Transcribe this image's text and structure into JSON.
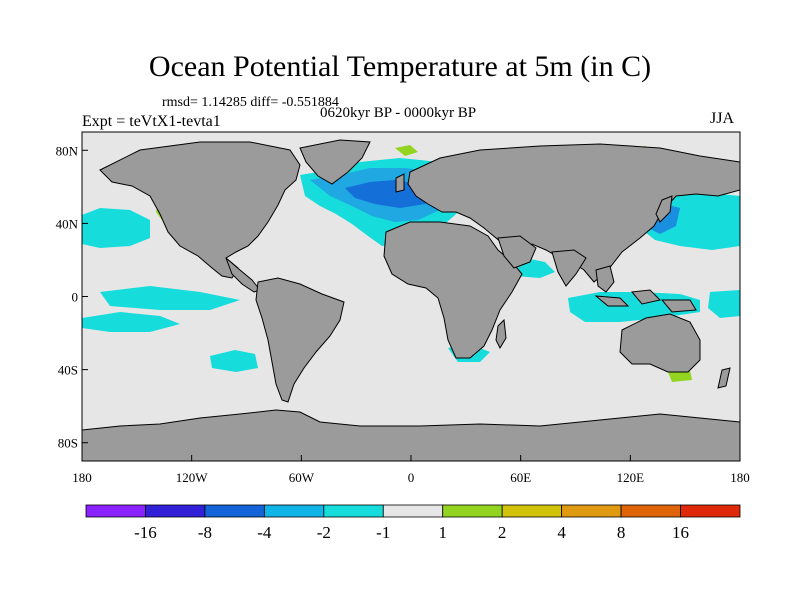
{
  "title": "Ocean Potential Temperature at 5m (in C)",
  "stats_line": "rmsd= 1.14285  diff= -0.551884",
  "period": "0620kyr BP - 0000kyr BP",
  "experiment": "Expt = teVtX1-tevta1",
  "season": "JJA",
  "map": {
    "land_color": "#9b9b9b",
    "ocean_neutral_color": "#e6e6e6",
    "coastline_color": "#000000",
    "lon_range": [
      -180,
      180
    ],
    "lat_range": [
      -90,
      90
    ],
    "x_ticks": [
      {
        "value": -180,
        "label": "180"
      },
      {
        "value": -120,
        "label": "120W"
      },
      {
        "value": -60,
        "label": "60W"
      },
      {
        "value": 0,
        "label": "0"
      },
      {
        "value": 60,
        "label": "60E"
      },
      {
        "value": 120,
        "label": "120E"
      },
      {
        "value": 180,
        "label": "180"
      }
    ],
    "y_ticks": [
      {
        "value": 80,
        "label": "80N"
      },
      {
        "value": 40,
        "label": "40N"
      },
      {
        "value": 0,
        "label": "0"
      },
      {
        "value": -40,
        "label": "40S"
      },
      {
        "value": -80,
        "label": "80S"
      }
    ]
  },
  "colorbar": {
    "colors": [
      "#8a22ff",
      "#3220d8",
      "#1264d8",
      "#10b4e6",
      "#16dcdc",
      "#e6e6e6",
      "#92d420",
      "#d2c20a",
      "#e09a12",
      "#e0640a",
      "#e0280a"
    ],
    "labels": [
      "-16",
      "-8",
      "-4",
      "-2",
      "-1",
      "1",
      "2",
      "4",
      "8",
      "16"
    ]
  }
}
